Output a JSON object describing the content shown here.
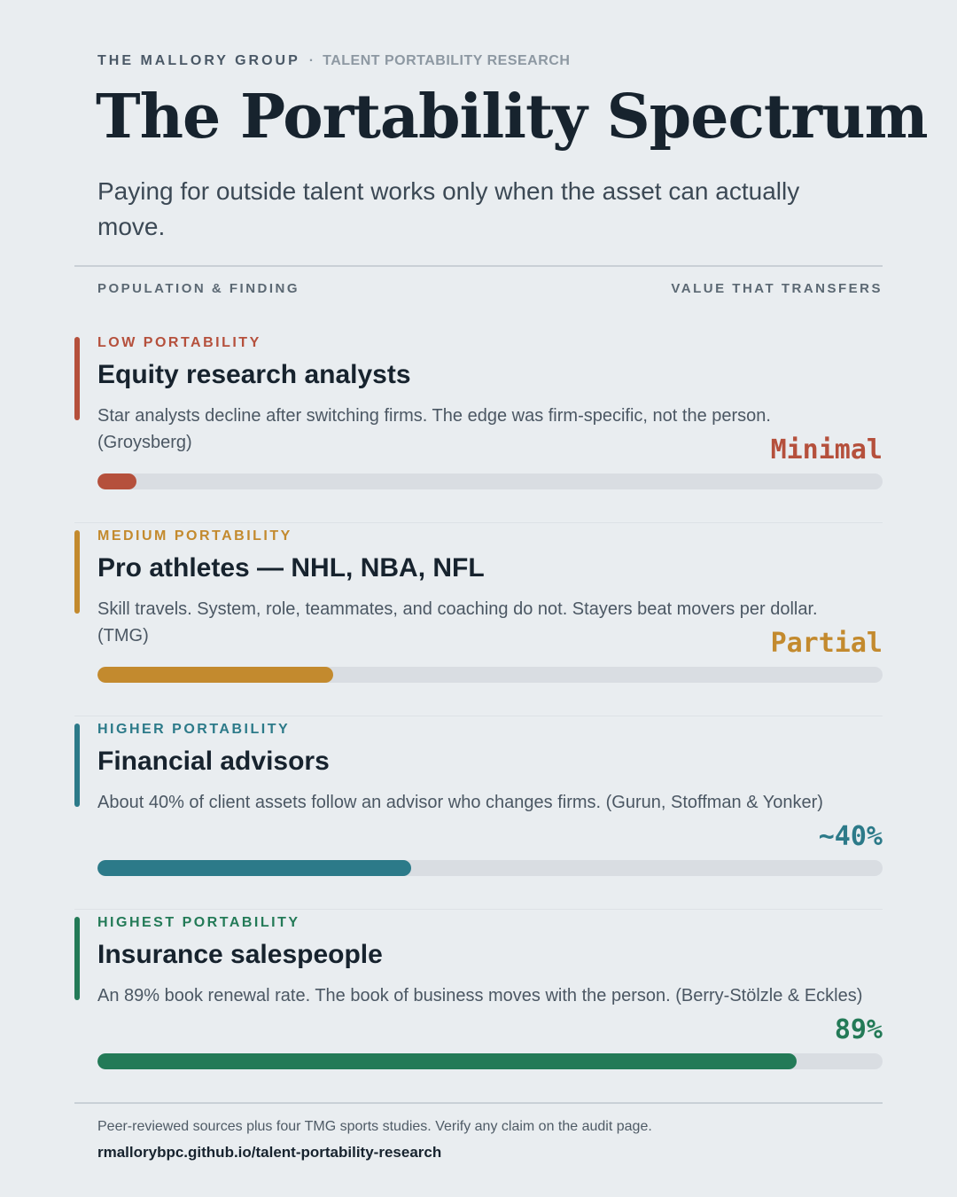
{
  "header": {
    "brand": "THE MALLORY GROUP",
    "separator": "·",
    "section": "TALENT PORTABILITY RESEARCH",
    "title": "The Portability Spectrum",
    "subtitle": "Paying for outside talent works only when the asset can actually move."
  },
  "columns": {
    "left": "POPULATION & FINDING",
    "right": "VALUE THAT TRANSFERS"
  },
  "rows": [
    {
      "tier": "LOW PORTABILITY",
      "name": "Equity research analysts",
      "description": "Star analysts decline after switching firms. The edge was firm-specific, not the person. (Groysberg)",
      "value_label": "Minimal",
      "level": 0.05,
      "color": "#b5503c"
    },
    {
      "tier": "MEDIUM PORTABILITY",
      "name": "Pro athletes — NHL, NBA, NFL",
      "description": "Skill travels. System, role, teammates, and coaching do not. Stayers beat movers per dollar. (TMG)",
      "value_label": "Partial",
      "level": 0.3,
      "color": "#c38a2e"
    },
    {
      "tier": "HIGHER PORTABILITY",
      "name": "Financial advisors",
      "description": "About 40% of client assets follow an advisor who changes firms. (Gurun, Stoffman & Yonker)",
      "value_label": "~40%",
      "level": 0.4,
      "color": "#2c7a89"
    },
    {
      "tier": "HIGHEST PORTABILITY",
      "name": "Insurance salespeople",
      "description": "An 89% book renewal rate. The book of business moves with the person. (Berry-Stölzle & Eckles)",
      "value_label": "89%",
      "level": 0.89,
      "color": "#237a57"
    }
  ],
  "footer": {
    "note": "Peer-reviewed sources plus four TMG sports studies. Verify any claim on the audit page.",
    "link": "rmallorybpc.github.io/talent-portability-research"
  }
}
